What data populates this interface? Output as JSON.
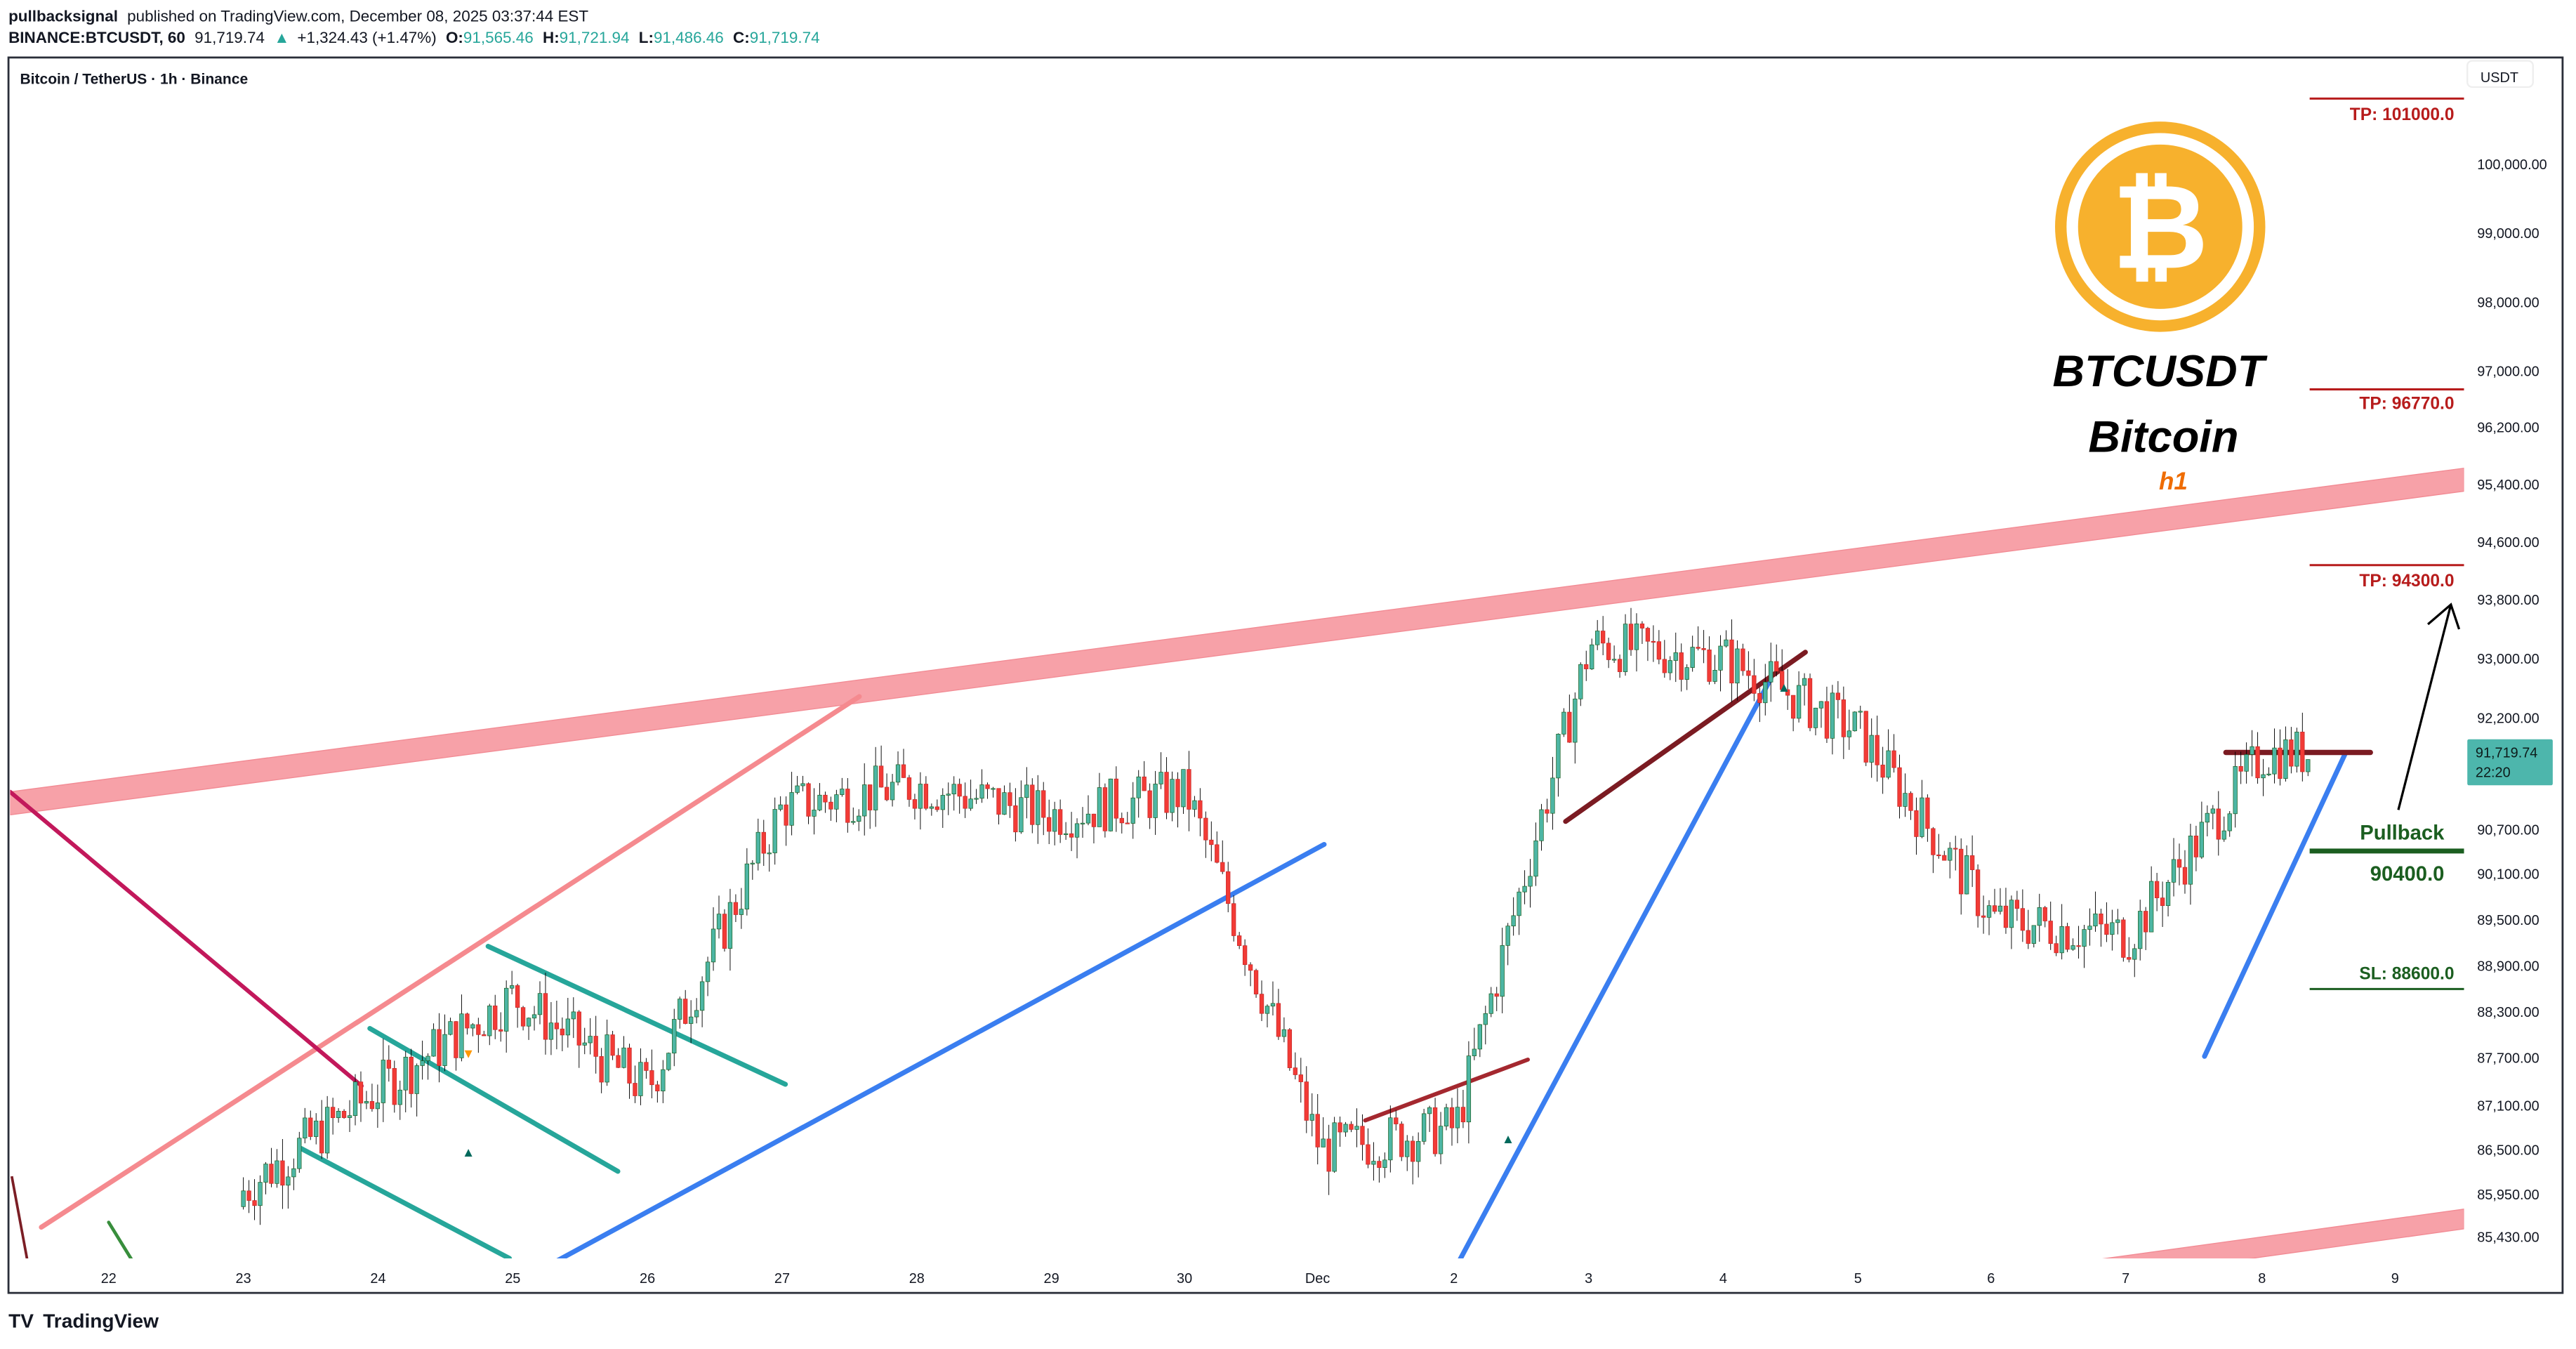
{
  "header": {
    "author": "pullbacksignal",
    "published_text": "published on TradingView.com, December 08, 2025 03:37:44 EST",
    "symbol_interval": "BINANCE:BTCUSDT, 60",
    "last_price": "91,719.74",
    "change": "+1,324.43 (+1.47%)",
    "o_label": "O:",
    "o_value": "91,565.46",
    "h_label": "H:",
    "h_value": "91,721.94",
    "l_label": "L:",
    "l_value": "91,486.46",
    "c_label": "C:",
    "c_value": "91,719.74"
  },
  "chart": {
    "legend_title": "Bitcoin / TetherUS · 1h · Binance",
    "currency": "USDT",
    "current_price_tag": "91,719.74",
    "countdown": "22:20",
    "colors": {
      "up": "#4db6a4",
      "down": "#f23b36",
      "band": "#f7a1a8",
      "tp": "#b71c1c",
      "pullback": "#1b5e20",
      "accent_tag": "#4db6ac",
      "bitcoin_orange": "#f7b12d",
      "h1_orange": "#ef6c00"
    }
  },
  "branding": {
    "ticker": "BTCUSDT",
    "name": "Bitcoin",
    "timeframe": "h1",
    "footer_logo": "TradingView"
  },
  "annotations": {
    "tp1": "TP: 101000.0",
    "tp2": "TP: 96770.0",
    "tp3": "TP: 94300.0",
    "pullback_label": "Pullback",
    "pullback_value": "90400.0",
    "sl": "SL: 88600.0"
  },
  "chart_data": {
    "type": "candlestick",
    "title": "Bitcoin / TetherUS · 1h · Binance",
    "xlabel": "",
    "ylabel": "USDT",
    "x_ticks": [
      "22",
      "23",
      "24",
      "25",
      "26",
      "27",
      "28",
      "29",
      "30",
      "Dec",
      "2",
      "3",
      "4",
      "5",
      "6",
      "7",
      "8",
      "9"
    ],
    "y_ticks": [
      "100,000.00",
      "99,000.00",
      "98,000.00",
      "97,000.00",
      "96,200.00",
      "95,400.00",
      "94,600.00",
      "93,800.00",
      "93,000.00",
      "92,200.00",
      "90,700.00",
      "90,100.00",
      "89,500.00",
      "88,900.00",
      "88,300.00",
      "87,700.00",
      "87,100.00",
      "86,500.00",
      "85,950.00",
      "85,430.00"
    ],
    "ylim": [
      85000,
      101200
    ],
    "grid": false,
    "last_close": 91719.74,
    "approx_daily_path": [
      {
        "x": "23",
        "close": 86000
      },
      {
        "x": "24",
        "close": 87300
      },
      {
        "x": "25",
        "close": 88500
      },
      {
        "x": "26",
        "close": 87300
      },
      {
        "x": "27",
        "close": 91000
      },
      {
        "x": "28",
        "close": 91300
      },
      {
        "x": "29",
        "close": 90900
      },
      {
        "x": "30",
        "close": 91200
      },
      {
        "x": "Dec",
        "close": 86500
      },
      {
        "x": "2",
        "close": 86800
      },
      {
        "x": "3",
        "close": 93200
      },
      {
        "x": "4",
        "close": 93000
      },
      {
        "x": "5",
        "close": 92000
      },
      {
        "x": "6",
        "close": 89500
      },
      {
        "x": "7",
        "close": 89300
      },
      {
        "x": "8",
        "close": 91719.74
      }
    ],
    "levels": [
      {
        "label": "TP",
        "value": 101000.0
      },
      {
        "label": "TP",
        "value": 96770.0
      },
      {
        "label": "TP",
        "value": 94300.0
      },
      {
        "label": "Pullback",
        "value": 90400.0
      },
      {
        "label": "SL",
        "value": 88600.0
      }
    ],
    "resistance_level": 91900
  }
}
